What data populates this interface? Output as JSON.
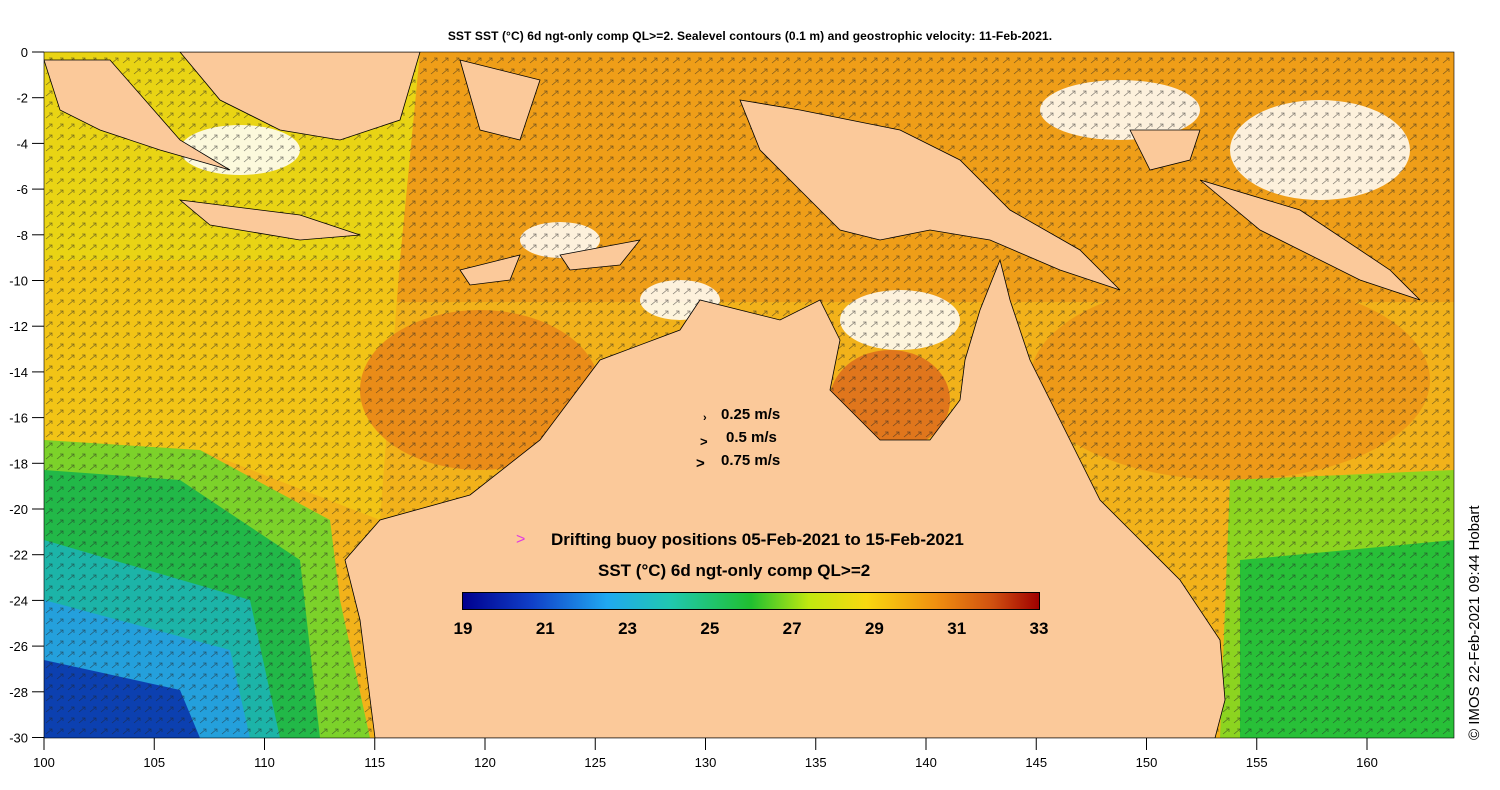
{
  "title": "SST SST (°C) 6d ngt-only comp QL>=2. Sealevel contours (0.1 m) and geostrophic velocity: 11-Feb-2021.",
  "axes": {
    "x_ticks": [
      "100",
      "105",
      "110",
      "115",
      "120",
      "125",
      "130",
      "135",
      "140",
      "145",
      "150",
      "155",
      "160"
    ],
    "y_ticks": [
      "0",
      "-2",
      "-4",
      "-6",
      "-8",
      "-10",
      "-12",
      "-14",
      "-16",
      "-18",
      "-20",
      "-22",
      "-24",
      "-26",
      "-28",
      "-30"
    ]
  },
  "velocity_legend": {
    "items": [
      {
        "label": "0.25 m/s",
        "arrow": "›"
      },
      {
        "label": "0.5 m/s",
        "arrow": ">"
      },
      {
        "label": "0.75 m/s",
        "arrow": ">"
      }
    ]
  },
  "buoy_legend": {
    "marker": ">",
    "label": "Drifting buoy positions 05-Feb-2021 to 15-Feb-2021"
  },
  "colorbar": {
    "title": "SST (°C) 6d ngt-only comp QL>=2",
    "ticks": [
      "19",
      "21",
      "23",
      "25",
      "27",
      "29",
      "31",
      "33"
    ]
  },
  "copyright": "© IMOS 22-Feb-2021 09:44 Hobart",
  "colors": {
    "land": "#fbc99a",
    "warm": "#f0a414",
    "hot": "#ea8a18",
    "mid": "#dfe40a",
    "green": "#22c02a",
    "teal": "#1cb2a0",
    "cool": "#1f8ad8",
    "cold": "#0a2fa0",
    "buoy": "#e03ce0"
  }
}
